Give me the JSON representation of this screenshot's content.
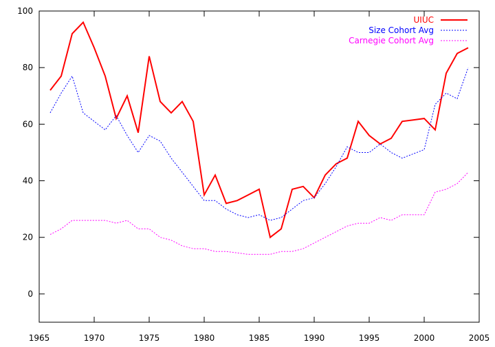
{
  "chart_data": {
    "type": "line",
    "xlim": [
      1965,
      2005
    ],
    "ylim": [
      -10,
      100
    ],
    "x_ticks": [
      1965,
      1970,
      1975,
      1980,
      1985,
      1990,
      1995,
      2000,
      2005
    ],
    "y_ticks": [
      0,
      20,
      40,
      60,
      80,
      100
    ],
    "x_tick_labels": [
      "1965",
      "1970",
      "1975",
      "1980",
      "1985",
      "1990",
      "1995",
      "2000",
      "2005"
    ],
    "y_tick_labels": [
      "0",
      "20",
      "40",
      "60",
      "80",
      "100"
    ],
    "legend_position": "top-right",
    "grid": false,
    "series": [
      {
        "name": "UIUC",
        "color": "#ff0000",
        "style": "solid",
        "x": [
          1966,
          1967,
          1968,
          1969,
          1970,
          1971,
          1972,
          1973,
          1974,
          1975,
          1976,
          1977,
          1978,
          1979,
          1980,
          1981,
          1982,
          1983,
          1984,
          1985,
          1986,
          1987,
          1988,
          1989,
          1990,
          1991,
          1992,
          1993,
          1994,
          1995,
          1996,
          1997,
          1998,
          1999,
          2000,
          2001,
          2002,
          2003,
          2004
        ],
        "values": [
          72,
          77,
          92,
          96,
          87,
          77,
          62,
          70,
          57,
          84,
          68,
          64,
          68,
          61,
          35,
          42,
          32,
          33,
          35,
          37,
          20,
          23,
          37,
          38,
          34,
          42,
          46,
          48,
          61,
          56,
          53,
          55,
          61,
          61.5,
          62,
          58,
          78,
          85,
          87
        ]
      },
      {
        "name": "Size Cohort Avg",
        "color": "#0000ff",
        "style": "dotted",
        "x": [
          1966,
          1967,
          1968,
          1969,
          1970,
          1971,
          1972,
          1973,
          1974,
          1975,
          1976,
          1977,
          1978,
          1979,
          1980,
          1981,
          1982,
          1983,
          1984,
          1985,
          1986,
          1987,
          1988,
          1989,
          1990,
          1991,
          1992,
          1993,
          1994,
          1995,
          1996,
          1997,
          1998,
          1999,
          2000,
          2001,
          2002,
          2003,
          2004
        ],
        "values": [
          64,
          71,
          77,
          64,
          61,
          58,
          63,
          56,
          50,
          56,
          54,
          48,
          43,
          38,
          33,
          33,
          30,
          28,
          27,
          28,
          26,
          27,
          30,
          33,
          34,
          39,
          45,
          52,
          50,
          50,
          53,
          50,
          48,
          49.5,
          51,
          67,
          71,
          69,
          80
        ]
      },
      {
        "name": "Carnegie Cohort Avg",
        "color": "#ff00ff",
        "style": "dotted",
        "x": [
          1966,
          1967,
          1968,
          1969,
          1970,
          1971,
          1972,
          1973,
          1974,
          1975,
          1976,
          1977,
          1978,
          1979,
          1980,
          1981,
          1982,
          1983,
          1984,
          1985,
          1986,
          1987,
          1988,
          1989,
          1990,
          1991,
          1992,
          1993,
          1994,
          1995,
          1996,
          1997,
          1998,
          1999,
          2000,
          2001,
          2002,
          2003,
          2004
        ],
        "values": [
          21,
          23,
          26,
          26,
          26,
          26,
          25,
          26,
          23,
          23,
          20,
          19,
          17,
          16,
          16,
          15,
          15,
          14.5,
          14,
          14,
          14,
          15,
          15,
          16,
          18,
          20,
          22,
          24,
          25,
          25,
          27,
          26,
          28,
          28,
          28,
          36,
          37,
          39,
          43
        ]
      }
    ]
  }
}
